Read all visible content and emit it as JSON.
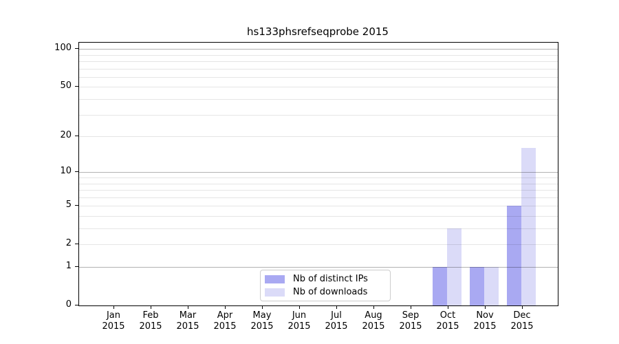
{
  "chart_data": {
    "type": "bar",
    "title": "hs133phsrefseqprobe 2015",
    "categories": [
      "Jan",
      "Feb",
      "Mar",
      "Apr",
      "May",
      "Jun",
      "Jul",
      "Aug",
      "Sep",
      "Oct",
      "Nov",
      "Dec"
    ],
    "category_year": "2015",
    "series": [
      {
        "name": "Nb of distinct IPs",
        "color": "#a9a9f2",
        "values": [
          0,
          0,
          0,
          0,
          0,
          0,
          0,
          0,
          0,
          1,
          1,
          5
        ]
      },
      {
        "name": "Nb of downloads",
        "color": "#dbdbf8",
        "values": [
          0,
          0,
          0,
          0,
          0,
          0,
          0,
          0,
          0,
          3,
          1,
          16
        ]
      }
    ],
    "yscale": "log10(1+x)",
    "ylim": [
      0,
      113
    ],
    "yticks": [
      0,
      1,
      2,
      5,
      10,
      20,
      50,
      100
    ],
    "major_gridlines": [
      1,
      10,
      100
    ],
    "minor_gridlines": [
      2,
      3,
      4,
      5,
      6,
      7,
      8,
      9,
      20,
      30,
      40,
      50,
      60,
      70,
      80,
      90
    ],
    "grid": "on",
    "legend_position": "lower center",
    "legend": [
      "Nb of distinct IPs",
      "Nb of downloads"
    ]
  }
}
